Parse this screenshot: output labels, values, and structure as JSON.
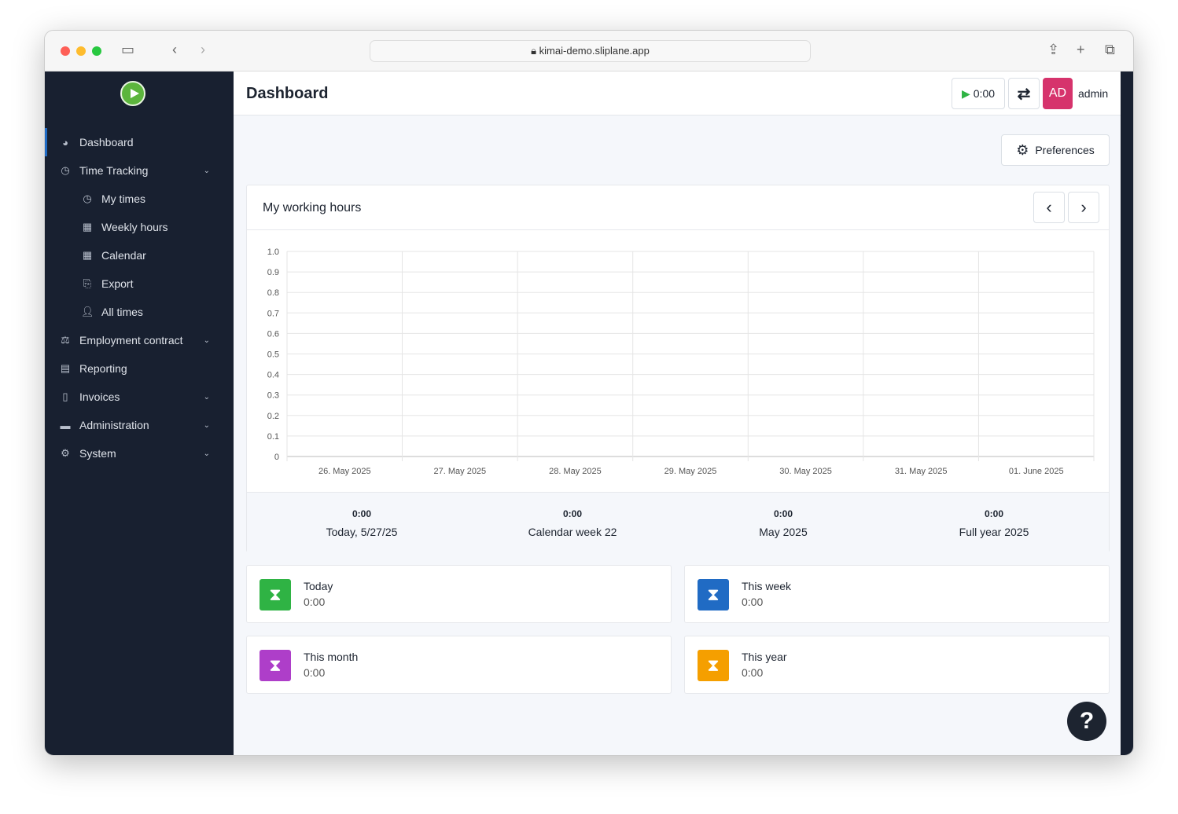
{
  "browser": {
    "url": "kimai-demo.sliplane.app"
  },
  "sidebar": {
    "items": [
      {
        "label": "Dashboard",
        "icon": "dashboard-icon",
        "sub": false,
        "chevron": false,
        "active": true
      },
      {
        "label": "Time Tracking",
        "icon": "clock-icon",
        "sub": false,
        "chevron": true
      },
      {
        "label": "My times",
        "icon": "clock-icon",
        "sub": true,
        "chevron": false
      },
      {
        "label": "Weekly hours",
        "icon": "table-icon",
        "sub": true,
        "chevron": false
      },
      {
        "label": "Calendar",
        "icon": "calendar-icon",
        "sub": true,
        "chevron": false
      },
      {
        "label": "Export",
        "icon": "export-icon",
        "sub": true,
        "chevron": false
      },
      {
        "label": "All times",
        "icon": "users-clock-icon",
        "sub": true,
        "chevron": false
      },
      {
        "label": "Employment contract",
        "icon": "scale-icon",
        "sub": false,
        "chevron": true
      },
      {
        "label": "Reporting",
        "icon": "chart-icon",
        "sub": false,
        "chevron": false
      },
      {
        "label": "Invoices",
        "icon": "invoice-icon",
        "sub": false,
        "chevron": true
      },
      {
        "label": "Administration",
        "icon": "toolbox-icon",
        "sub": false,
        "chevron": true
      },
      {
        "label": "System",
        "icon": "gear-icon",
        "sub": false,
        "chevron": true
      }
    ]
  },
  "header": {
    "title": "Dashboard",
    "timer": "0:00",
    "avatar": "AD",
    "user": "admin",
    "avatar_color": "#d6336c"
  },
  "preferences_label": "Preferences",
  "chart_card": {
    "title": "My working hours"
  },
  "chart_data": {
    "type": "bar",
    "title": "",
    "categories": [
      "26. May 2025",
      "27. May 2025",
      "28. May 2025",
      "29. May 2025",
      "30. May 2025",
      "31. May 2025",
      "01. June 2025"
    ],
    "values": [
      0,
      0,
      0,
      0,
      0,
      0,
      0
    ],
    "ylim": [
      0,
      1
    ],
    "yticks": [
      "0",
      "0.1",
      "0.2",
      "0.3",
      "0.4",
      "0.5",
      "0.6",
      "0.7",
      "0.8",
      "0.9",
      "1.0"
    ],
    "grid": true
  },
  "summary": [
    {
      "value": "0:00",
      "label": "Today, 5/27/25"
    },
    {
      "value": "0:00",
      "label": "Calendar week 22"
    },
    {
      "value": "0:00",
      "label": "May 2025"
    },
    {
      "value": "0:00",
      "label": "Full year 2025"
    }
  ],
  "cards": [
    {
      "title": "Today",
      "value": "0:00",
      "color": "#2fb344"
    },
    {
      "title": "This week",
      "value": "0:00",
      "color": "#206bc4"
    },
    {
      "title": "This month",
      "value": "0:00",
      "color": "#ae3ec9"
    },
    {
      "title": "This year",
      "value": "0:00",
      "color": "#f59f00"
    }
  ],
  "help": "?"
}
